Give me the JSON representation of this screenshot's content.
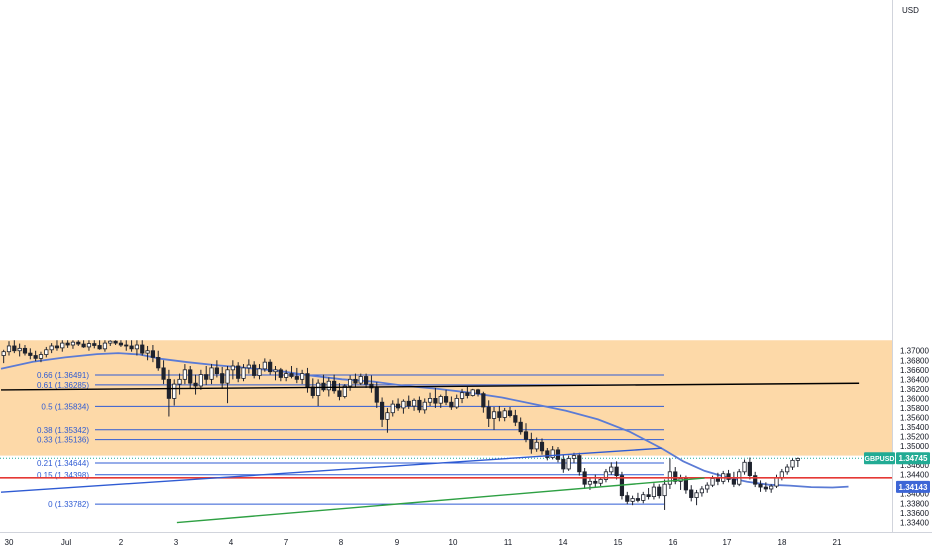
{
  "chart_data": {
    "type": "candlestick",
    "symbol": "GBPUSD",
    "currency": "USD",
    "y_range": [
      1.3338,
      1.3722
    ],
    "y_ticks": [
      "1.37000",
      "1.36800",
      "1.36600",
      "1.36400",
      "1.36200",
      "1.36000",
      "1.35800",
      "1.35600",
      "1.35400",
      "1.35200",
      "1.35000",
      "1.34800",
      "1.34600",
      "1.34400",
      "1.34200",
      "1.34000",
      "1.33800",
      "1.33600",
      "1.33400"
    ],
    "x_ticks": [
      "30",
      "Jul",
      "2",
      "3",
      "4",
      "7",
      "8",
      "9",
      "10",
      "11",
      "14",
      "15",
      "16",
      "17",
      "18",
      "21"
    ],
    "last_price": {
      "symbol_label": "GBPUSD",
      "value": "1.34745",
      "price": 1.34745,
      "color": "#22ab94"
    },
    "ma_value": {
      "value": "1.34143",
      "price": 1.34143,
      "color": "#3d66d6"
    },
    "supply_zone": {
      "from": 1.348,
      "to": 1.3722,
      "color": "#fdd9a8"
    },
    "fib_levels": [
      {
        "ratio": "0.66",
        "label": "0.66 (1.36491)",
        "price": 1.36491
      },
      {
        "ratio": "0.61",
        "label": "0.61 (1.36285)",
        "price": 1.36285
      },
      {
        "ratio": "0.5",
        "label": "0.5 (1.35834)",
        "price": 1.35834
      },
      {
        "ratio": "0.38",
        "label": "0.38 (1.35342)",
        "price": 1.35342
      },
      {
        "ratio": "0.33",
        "label": "0.33 (1.35136)",
        "price": 1.35136
      },
      {
        "ratio": "0.21",
        "label": "0.21 (1.34644)",
        "price": 1.34644
      },
      {
        "ratio": "0.15",
        "label": "0.15 (1.34398)",
        "price": 1.34398
      },
      {
        "ratio": "0",
        "label": "0 (1.33782)",
        "price": 1.33782
      }
    ],
    "horizontal_line": {
      "price": 1.34335,
      "color": "#e53935"
    },
    "trendlines": [
      {
        "name": "black",
        "color": "#000000",
        "from": {
          "bar": 0,
          "price": 1.36178
        },
        "to": {
          "bar": 161,
          "price": 1.36318
        }
      },
      {
        "name": "blue",
        "color": "#2f5bd3",
        "from": {
          "bar": 0,
          "price": 1.34033
        },
        "to": {
          "bar": 124,
          "price": 1.34955
        }
      },
      {
        "name": "green",
        "color": "#2ea043",
        "from": {
          "bar": 33,
          "price": 1.33395
        },
        "to": {
          "bar": 132,
          "price": 1.34328
        }
      }
    ],
    "ma": [
      [
        0,
        1.3662
      ],
      [
        6,
        1.3677
      ],
      [
        12,
        1.3686
      ],
      [
        18,
        1.3693
      ],
      [
        22,
        1.3695
      ],
      [
        26,
        1.3692
      ],
      [
        30,
        1.3683
      ],
      [
        35,
        1.3676
      ],
      [
        40,
        1.367
      ],
      [
        46,
        1.3664
      ],
      [
        52,
        1.3658
      ],
      [
        58,
        1.3648
      ],
      [
        64,
        1.364
      ],
      [
        70,
        1.3635
      ],
      [
        76,
        1.3626
      ],
      [
        82,
        1.362
      ],
      [
        88,
        1.3612
      ],
      [
        94,
        1.3602
      ],
      [
        100,
        1.3588
      ],
      [
        106,
        1.3574
      ],
      [
        112,
        1.3556
      ],
      [
        118,
        1.353
      ],
      [
        124,
        1.3495
      ],
      [
        128,
        1.3468
      ],
      [
        132,
        1.3448
      ],
      [
        136,
        1.3435
      ],
      [
        140,
        1.3425
      ],
      [
        144,
        1.3419
      ],
      [
        148,
        1.3417
      ],
      [
        152,
        1.3414
      ],
      [
        156,
        1.3413
      ],
      [
        159,
        1.3415
      ]
    ],
    "candles": [
      [
        1.369,
        1.3702,
        1.3674,
        1.3698
      ],
      [
        1.3698,
        1.372,
        1.369,
        1.371
      ],
      [
        1.371,
        1.3722,
        1.3695,
        1.37
      ],
      [
        1.37,
        1.3715,
        1.3688,
        1.3705
      ],
      [
        1.3705,
        1.3712,
        1.369,
        1.3695
      ],
      [
        1.3695,
        1.3705,
        1.3682,
        1.369
      ],
      [
        1.369,
        1.37,
        1.3678,
        1.3684
      ],
      [
        1.3684,
        1.3698,
        1.3676,
        1.3692
      ],
      [
        1.3692,
        1.3708,
        1.3686,
        1.3702
      ],
      [
        1.3702,
        1.3716,
        1.3695,
        1.371
      ],
      [
        1.371,
        1.3722,
        1.37,
        1.3706
      ],
      [
        1.3706,
        1.3722,
        1.3698,
        1.3716
      ],
      [
        1.3716,
        1.3722,
        1.3706,
        1.3712
      ],
      [
        1.3712,
        1.3722,
        1.3704,
        1.3718
      ],
      [
        1.3718,
        1.3722,
        1.371,
        1.3714
      ],
      [
        1.3714,
        1.3722,
        1.3706,
        1.3708
      ],
      [
        1.3708,
        1.3722,
        1.37,
        1.3715
      ],
      [
        1.3715,
        1.3722,
        1.3705,
        1.3711
      ],
      [
        1.3711,
        1.3722,
        1.3702,
        1.3704
      ],
      [
        1.3704,
        1.3722,
        1.3698,
        1.3716
      ],
      [
        1.3716,
        1.3722,
        1.371,
        1.372
      ],
      [
        1.372,
        1.3722,
        1.3712,
        1.3716
      ],
      [
        1.3716,
        1.3722,
        1.3708,
        1.3712
      ],
      [
        1.3712,
        1.3722,
        1.37,
        1.371
      ],
      [
        1.371,
        1.3722,
        1.3698,
        1.3704
      ],
      [
        1.3704,
        1.3722,
        1.369,
        1.3712
      ],
      [
        1.3712,
        1.3722,
        1.369,
        1.3695
      ],
      [
        1.3695,
        1.371,
        1.368,
        1.37
      ],
      [
        1.37,
        1.3712,
        1.3676,
        1.3686
      ],
      [
        1.3686,
        1.37,
        1.3658,
        1.3664
      ],
      [
        1.3664,
        1.368,
        1.363,
        1.364
      ],
      [
        1.364,
        1.366,
        1.3562,
        1.36
      ],
      [
        1.36,
        1.364,
        1.3585,
        1.363
      ],
      [
        1.363,
        1.3652,
        1.3608,
        1.364
      ],
      [
        1.364,
        1.3672,
        1.363,
        1.366
      ],
      [
        1.366,
        1.3668,
        1.362,
        1.3632
      ],
      [
        1.3632,
        1.365,
        1.3608,
        1.3626
      ],
      [
        1.3626,
        1.366,
        1.3618,
        1.365
      ],
      [
        1.365,
        1.3668,
        1.3628,
        1.364
      ],
      [
        1.364,
        1.3672,
        1.363,
        1.3664
      ],
      [
        1.3664,
        1.368,
        1.3644,
        1.3652
      ],
      [
        1.3652,
        1.3666,
        1.362,
        1.3632
      ],
      [
        1.3632,
        1.3668,
        1.359,
        1.366
      ],
      [
        1.366,
        1.368,
        1.364,
        1.3668
      ],
      [
        1.3668,
        1.3676,
        1.3634,
        1.3642
      ],
      [
        1.3642,
        1.3672,
        1.3636,
        1.3664
      ],
      [
        1.3664,
        1.3682,
        1.3652,
        1.367
      ],
      [
        1.367,
        1.3678,
        1.3642,
        1.3648
      ],
      [
        1.3648,
        1.3672,
        1.364,
        1.3662
      ],
      [
        1.3662,
        1.3684,
        1.3656,
        1.3676
      ],
      [
        1.3676,
        1.3682,
        1.365,
        1.3656
      ],
      [
        1.3656,
        1.3668,
        1.3638,
        1.366
      ],
      [
        1.366,
        1.3664,
        1.3636,
        1.3644
      ],
      [
        1.3644,
        1.366,
        1.3636,
        1.3652
      ],
      [
        1.3652,
        1.3668,
        1.3642,
        1.3646
      ],
      [
        1.3646,
        1.3664,
        1.3632,
        1.364
      ],
      [
        1.364,
        1.366,
        1.363,
        1.3652
      ],
      [
        1.3652,
        1.3664,
        1.3612,
        1.3624
      ],
      [
        1.3624,
        1.3642,
        1.36,
        1.3606
      ],
      [
        1.3606,
        1.364,
        1.3584,
        1.3632
      ],
      [
        1.3632,
        1.365,
        1.3614,
        1.3618
      ],
      [
        1.3618,
        1.3644,
        1.3604,
        1.3636
      ],
      [
        1.3636,
        1.365,
        1.361,
        1.3616
      ],
      [
        1.3616,
        1.3632,
        1.3596,
        1.3604
      ],
      [
        1.3604,
        1.363,
        1.36,
        1.3626
      ],
      [
        1.3626,
        1.3648,
        1.3616,
        1.364
      ],
      [
        1.364,
        1.3652,
        1.3624,
        1.3632
      ],
      [
        1.3632,
        1.3652,
        1.3628,
        1.3646
      ],
      [
        1.3646,
        1.3652,
        1.3622,
        1.363
      ],
      [
        1.363,
        1.3648,
        1.3612,
        1.3622
      ],
      [
        1.3622,
        1.3634,
        1.358,
        1.3592
      ],
      [
        1.3592,
        1.3602,
        1.354,
        1.3556
      ],
      [
        1.3556,
        1.358,
        1.3528,
        1.357
      ],
      [
        1.357,
        1.3596,
        1.3562,
        1.3588
      ],
      [
        1.3588,
        1.36,
        1.3574,
        1.358
      ],
      [
        1.358,
        1.3598,
        1.3568,
        1.3594
      ],
      [
        1.3594,
        1.3606,
        1.3578,
        1.3584
      ],
      [
        1.3584,
        1.36,
        1.3574,
        1.3596
      ],
      [
        1.3596,
        1.3604,
        1.357,
        1.3576
      ],
      [
        1.3576,
        1.36,
        1.3568,
        1.3592
      ],
      [
        1.3592,
        1.3612,
        1.3584,
        1.36
      ],
      [
        1.36,
        1.3622,
        1.358,
        1.359
      ],
      [
        1.359,
        1.3608,
        1.358,
        1.3604
      ],
      [
        1.3604,
        1.3618,
        1.3586,
        1.3592
      ],
      [
        1.3592,
        1.3604,
        1.3576,
        1.3582
      ],
      [
        1.3582,
        1.3608,
        1.3578,
        1.36
      ],
      [
        1.36,
        1.362,
        1.359,
        1.3612
      ],
      [
        1.3612,
        1.3624,
        1.36,
        1.3606
      ],
      [
        1.3606,
        1.362,
        1.3604,
        1.3618
      ],
      [
        1.3618,
        1.362,
        1.3604,
        1.361
      ],
      [
        1.361,
        1.3614,
        1.357,
        1.3582
      ],
      [
        1.3582,
        1.3596,
        1.354,
        1.3558
      ],
      [
        1.3558,
        1.3582,
        1.3534,
        1.3572
      ],
      [
        1.3572,
        1.3584,
        1.3552,
        1.356
      ],
      [
        1.356,
        1.358,
        1.3552,
        1.3574
      ],
      [
        1.3574,
        1.3582,
        1.356,
        1.3564
      ],
      [
        1.3564,
        1.3576,
        1.3542,
        1.355
      ],
      [
        1.355,
        1.356,
        1.3524,
        1.353
      ],
      [
        1.353,
        1.3548,
        1.3508,
        1.3514
      ],
      [
        1.3514,
        1.3528,
        1.3484,
        1.3494
      ],
      [
        1.3494,
        1.3518,
        1.3488,
        1.3508
      ],
      [
        1.3508,
        1.3516,
        1.3482,
        1.349
      ],
      [
        1.349,
        1.3496,
        1.347,
        1.3476
      ],
      [
        1.3476,
        1.35,
        1.3472,
        1.3492
      ],
      [
        1.3492,
        1.3498,
        1.3466,
        1.3472
      ],
      [
        1.3472,
        1.3482,
        1.3444,
        1.3452
      ],
      [
        1.3452,
        1.348,
        1.3448,
        1.3474
      ],
      [
        1.3474,
        1.3486,
        1.3464,
        1.348
      ],
      [
        1.348,
        1.3486,
        1.3438,
        1.3446
      ],
      [
        1.3446,
        1.3454,
        1.341,
        1.342
      ],
      [
        1.342,
        1.3432,
        1.3408,
        1.3426
      ],
      [
        1.3426,
        1.344,
        1.3414,
        1.3422
      ],
      [
        1.3422,
        1.3434,
        1.3416,
        1.343
      ],
      [
        1.343,
        1.3452,
        1.3424,
        1.3446
      ],
      [
        1.3446,
        1.3466,
        1.344,
        1.3456
      ],
      [
        1.3456,
        1.3468,
        1.343,
        1.3438
      ],
      [
        1.3438,
        1.3446,
        1.3388,
        1.3396
      ],
      [
        1.3396,
        1.3404,
        1.3378,
        1.3384
      ],
      [
        1.3384,
        1.3396,
        1.3376,
        1.339
      ],
      [
        1.339,
        1.3402,
        1.3382,
        1.3386
      ],
      [
        1.3386,
        1.3404,
        1.338,
        1.3398
      ],
      [
        1.3398,
        1.3412,
        1.3388,
        1.3394
      ],
      [
        1.3394,
        1.3422,
        1.3388,
        1.3414
      ],
      [
        1.3414,
        1.342,
        1.339,
        1.3396
      ],
      [
        1.3396,
        1.343,
        1.3366,
        1.342
      ],
      [
        1.342,
        1.3474,
        1.341,
        1.3446
      ],
      [
        1.3446,
        1.3456,
        1.342,
        1.3426
      ],
      [
        1.3426,
        1.344,
        1.3408,
        1.3432
      ],
      [
        1.3432,
        1.3438,
        1.34,
        1.3408
      ],
      [
        1.3408,
        1.3418,
        1.3384,
        1.3392
      ],
      [
        1.3392,
        1.3408,
        1.3376,
        1.3402
      ],
      [
        1.3402,
        1.3416,
        1.3394,
        1.341
      ],
      [
        1.341,
        1.3424,
        1.3402,
        1.3418
      ],
      [
        1.3418,
        1.3438,
        1.3414,
        1.3432
      ],
      [
        1.3432,
        1.3444,
        1.3418,
        1.3426
      ],
      [
        1.3426,
        1.3448,
        1.342,
        1.3442
      ],
      [
        1.3442,
        1.345,
        1.3424,
        1.343
      ],
      [
        1.343,
        1.3446,
        1.3414,
        1.342
      ],
      [
        1.342,
        1.3452,
        1.3416,
        1.3446
      ],
      [
        1.3446,
        1.3472,
        1.344,
        1.3466
      ],
      [
        1.3466,
        1.3476,
        1.343,
        1.3438
      ],
      [
        1.3438,
        1.3446,
        1.3414,
        1.342
      ],
      [
        1.342,
        1.3428,
        1.3404,
        1.3414
      ],
      [
        1.3414,
        1.3424,
        1.3404,
        1.341
      ],
      [
        1.341,
        1.342,
        1.3402,
        1.3416
      ],
      [
        1.3416,
        1.344,
        1.3412,
        1.3434
      ],
      [
        1.3434,
        1.3452,
        1.3428,
        1.3446
      ],
      [
        1.3446,
        1.3462,
        1.344,
        1.3456
      ],
      [
        1.3456,
        1.3474,
        1.345,
        1.347
      ],
      [
        1.347,
        1.3476,
        1.3456,
        1.3474
      ]
    ]
  }
}
